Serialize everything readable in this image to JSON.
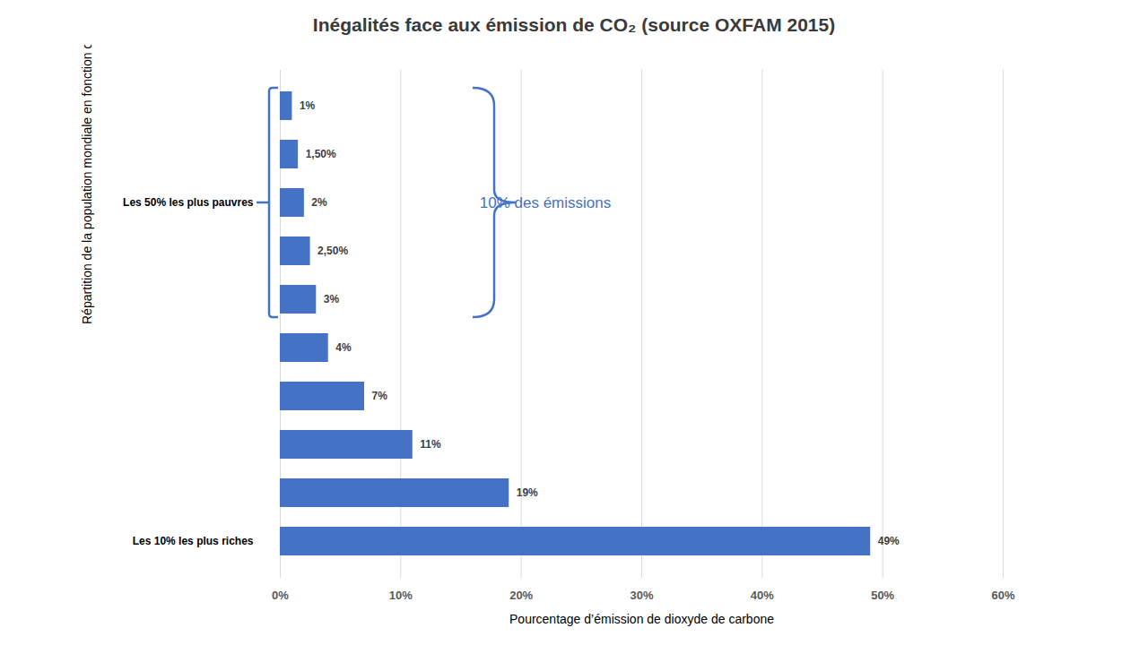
{
  "chart_data": {
    "type": "bar",
    "orientation": "horizontal",
    "title": "Inégalités face aux émission de CO₂ (source OXFAM 2015)",
    "x_label": "Pourcentage d’émission de dioxyde de carbone",
    "y_label": "Répartition de la population mondiale en fonction des revenus",
    "categories": [
      null,
      null,
      "Les 50% les plus pauvres",
      null,
      null,
      null,
      null,
      null,
      null,
      "Les 10% les plus riches"
    ],
    "values": [
      1,
      1.5,
      2,
      2.5,
      3,
      4,
      7,
      11,
      19,
      49
    ],
    "value_labels": [
      "1%",
      "1,50%",
      "2%",
      "2,50%",
      "3%",
      "4%",
      "7%",
      "11%",
      "19%",
      "49%"
    ],
    "data_labels": true,
    "color": "#4472c4",
    "xlim": [
      0,
      60
    ],
    "xticks": [
      {
        "value": 0,
        "label": "0%"
      },
      {
        "value": 10,
        "label": "10%"
      },
      {
        "value": 20,
        "label": "20%"
      },
      {
        "value": 30,
        "label": "30%"
      },
      {
        "value": 40,
        "label": "40%"
      },
      {
        "value": 50,
        "label": "50%"
      },
      {
        "value": 60,
        "label": "60%"
      }
    ],
    "grid": true,
    "annotations": [
      {
        "text": "10% des émissions"
      }
    ]
  }
}
